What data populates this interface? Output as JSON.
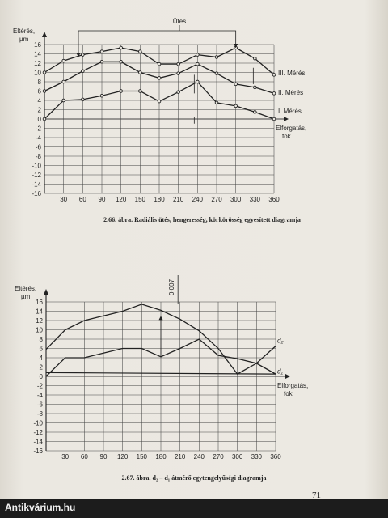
{
  "chart_data": [
    {
      "type": "line",
      "ylabel": "Eltérés, µm",
      "xlabel": "Elforgatás, fok",
      "annotation": "Ütés",
      "x": [
        0,
        30,
        60,
        90,
        120,
        150,
        180,
        210,
        240,
        270,
        300,
        330,
        360
      ],
      "xticks": [
        "30",
        "60",
        "90",
        "120",
        "150",
        "180",
        "210",
        "240",
        "270",
        "300",
        "330",
        "360"
      ],
      "yticks": [
        "16",
        "14",
        "12",
        "10",
        "8",
        "6",
        "4",
        "2",
        "0",
        "-2",
        "-4",
        "-6",
        "-8",
        "-10",
        "-12",
        "-14",
        "-16"
      ],
      "xlim": [
        0,
        360
      ],
      "ylim": [
        -16,
        16
      ],
      "grid": true,
      "series": [
        {
          "name": "III. Mérés",
          "values": [
            10,
            12.5,
            13.8,
            14.5,
            15.3,
            14.5,
            11.8,
            11.8,
            13.8,
            13.3,
            15.3,
            13,
            9.5
          ]
        },
        {
          "name": "II. Mérés",
          "values": [
            6,
            8,
            10.3,
            12.3,
            12.3,
            10,
            8.8,
            9.8,
            11.8,
            9.8,
            7.5,
            6.8,
            5.5
          ]
        },
        {
          "name": "I. Mérés",
          "values": [
            0,
            4,
            4.2,
            5,
            6,
            6,
            3.8,
            5.8,
            8,
            3.5,
            2.8,
            1.5,
            0
          ]
        }
      ],
      "caption": "2.66. ábra. Radiális ütés, hengeresség, körkörösség egyesített diagramja"
    },
    {
      "type": "line",
      "ylabel": "Eltérés, µm",
      "xlabel": "Elforgatás, fok",
      "annotation": "0,007",
      "x": [
        0,
        30,
        60,
        90,
        120,
        150,
        180,
        210,
        240,
        270,
        300,
        330,
        360
      ],
      "xticks": [
        "30",
        "60",
        "90",
        "120",
        "150",
        "180",
        "210",
        "240",
        "270",
        "300",
        "330",
        "360"
      ],
      "yticks": [
        "16",
        "14",
        "12",
        "10",
        "8",
        "6",
        "4",
        "2",
        "0",
        "-2",
        "-4",
        "-6",
        "-8",
        "-10",
        "-12",
        "-14",
        "-16"
      ],
      "xlim": [
        0,
        360
      ],
      "ylim": [
        -16,
        16
      ],
      "grid": true,
      "series": [
        {
          "name": "d2",
          "values": [
            5.8,
            10,
            12,
            13,
            14,
            15.5,
            14.2,
            12.3,
            9.8,
            6,
            0.5,
            2.8,
            6.5
          ]
        },
        {
          "name": "d1",
          "values": [
            0,
            4,
            4,
            5,
            6,
            6,
            4.2,
            6,
            8,
            4.5,
            3.8,
            2.8,
            0.5
          ]
        }
      ],
      "flat_line": 0.8,
      "series_labels": {
        "d2": "d₂",
        "d1": "d₁"
      },
      "caption": "2.67. ábra. d₂ – d₁ átmérő egytengelyűségi diagramja"
    }
  ],
  "page_number": "71",
  "watermark": "Antikvárium.hu"
}
